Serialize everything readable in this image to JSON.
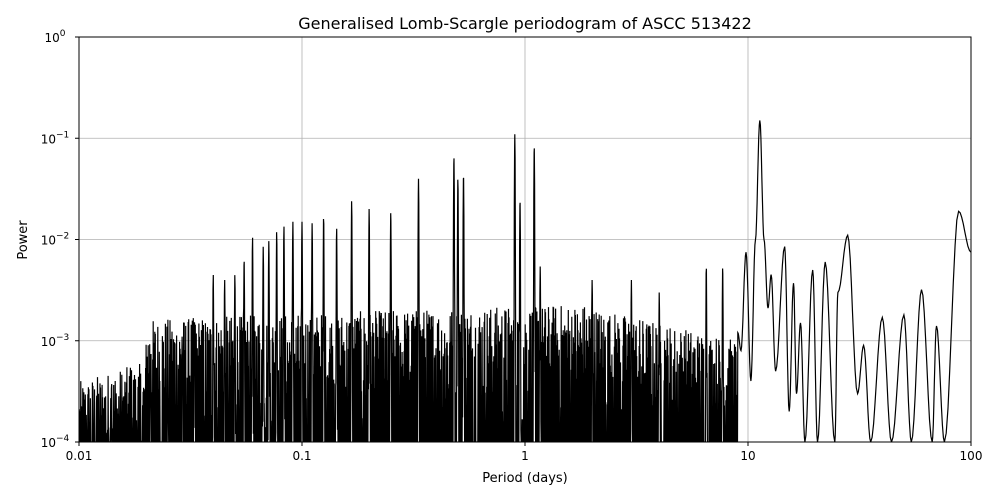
{
  "chart_data": {
    "type": "line",
    "title": "Generalised Lomb-Scargle periodogram of ASCC 513422",
    "xlabel": "Period (days)",
    "ylabel": "Power",
    "xscale": "log",
    "yscale": "log",
    "xlim": [
      0.01,
      100
    ],
    "ylim": [
      0.0001,
      1
    ],
    "grid": true,
    "line_color": "#000000",
    "grid_color": "#b0b0b0",
    "x_ticks": [
      {
        "v": 0.01,
        "label": "0.01"
      },
      {
        "v": 0.1,
        "label": "0.1"
      },
      {
        "v": 1,
        "label": "1"
      },
      {
        "v": 10,
        "label": "10"
      },
      {
        "v": 100,
        "label": "100"
      }
    ],
    "y_ticks": [
      {
        "v": 0.0001,
        "base": "10",
        "exp": "−4"
      },
      {
        "v": 0.001,
        "base": "10",
        "exp": "−3"
      },
      {
        "v": 0.01,
        "base": "10",
        "exp": "−2"
      },
      {
        "v": 0.1,
        "base": "10",
        "exp": "−1"
      },
      {
        "v": 1,
        "base": "10",
        "exp": "0"
      }
    ],
    "peaks": [
      [
        0.012,
        0.0003
      ],
      [
        0.014,
        0.0004
      ],
      [
        0.017,
        0.00055
      ],
      [
        0.021,
        0.0008
      ],
      [
        0.025,
        0.0007
      ],
      [
        0.029,
        0.0011
      ],
      [
        0.033,
        0.0016
      ],
      [
        0.04,
        0.0045
      ],
      [
        0.045,
        0.004
      ],
      [
        0.05,
        0.0045
      ],
      [
        0.055,
        0.0065
      ],
      [
        0.06,
        0.0105
      ],
      [
        0.067,
        0.0085
      ],
      [
        0.071,
        0.0098
      ],
      [
        0.077,
        0.012
      ],
      [
        0.083,
        0.0135
      ],
      [
        0.091,
        0.015
      ],
      [
        0.1,
        0.015
      ],
      [
        0.111,
        0.0145
      ],
      [
        0.125,
        0.017
      ],
      [
        0.143,
        0.013
      ],
      [
        0.167,
        0.024
      ],
      [
        0.2,
        0.02
      ],
      [
        0.25,
        0.019
      ],
      [
        0.333,
        0.04
      ],
      [
        0.48,
        0.067
      ],
      [
        0.5,
        0.04
      ],
      [
        0.53,
        0.045
      ],
      [
        0.9,
        0.11
      ],
      [
        0.95,
        0.025
      ],
      [
        1.1,
        0.085
      ],
      [
        1.17,
        0.0055
      ],
      [
        2,
        0.004
      ],
      [
        3,
        0.004
      ],
      [
        4,
        0.003
      ],
      [
        6.5,
        0.0055
      ],
      [
        7.7,
        0.0055
      ]
    ],
    "long_period_curve": [
      [
        9.0,
        0.0012
      ],
      [
        9.3,
        0.0008
      ],
      [
        9.8,
        0.0075
      ],
      [
        10.3,
        0.0004
      ],
      [
        10.8,
        0.01
      ],
      [
        11.3,
        0.15
      ],
      [
        11.8,
        0.01
      ],
      [
        12.3,
        0.0021
      ],
      [
        12.7,
        0.0045
      ],
      [
        13.3,
        0.0005
      ],
      [
        14.6,
        0.0085
      ],
      [
        15.3,
        0.0002
      ],
      [
        16,
        0.0037
      ],
      [
        16.5,
        0.0003
      ],
      [
        17.2,
        0.0015
      ],
      [
        18,
        0.0001
      ],
      [
        19.5,
        0.005
      ],
      [
        20.5,
        0.0001
      ],
      [
        22.2,
        0.006
      ],
      [
        24.5,
        0.0001
      ],
      [
        25.3,
        0.003
      ],
      [
        28,
        0.011
      ],
      [
        31,
        0.0003
      ],
      [
        33,
        0.0009
      ],
      [
        35.5,
        0.0001
      ],
      [
        40,
        0.0017
      ],
      [
        44,
        0.0001
      ],
      [
        50,
        0.0018
      ],
      [
        54,
        0.0001
      ],
      [
        60,
        0.0032
      ],
      [
        67,
        0.0001
      ],
      [
        70,
        0.0014
      ],
      [
        76,
        0.0001
      ],
      [
        88,
        0.019
      ],
      [
        100,
        0.0075
      ]
    ]
  }
}
